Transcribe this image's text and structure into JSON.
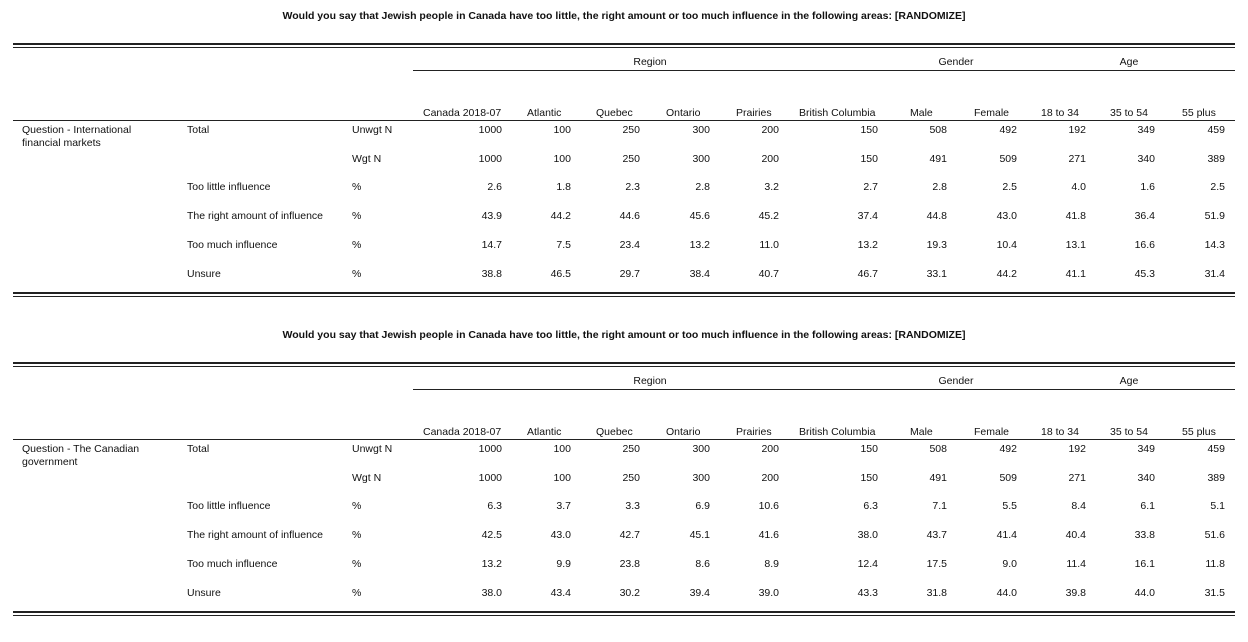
{
  "tables": [
    {
      "title": "Would you say that Jewish people in Canada have too little, the right amount or too much influence in the following areas: [RANDOMIZE]",
      "groups": [
        "Region",
        "Gender",
        "Age"
      ],
      "columns": [
        "Canada 2018-07",
        "Atlantic",
        "Quebec",
        "Ontario",
        "Prairies",
        "British Columbia",
        "Male",
        "Female",
        "18 to 34",
        "35 to 54",
        "55 plus"
      ],
      "question": "Question - International financial markets",
      "rows": [
        {
          "label": "Total",
          "stat": "Unwgt N",
          "values": [
            "1000",
            "100",
            "250",
            "300",
            "200",
            "150",
            "508",
            "492",
            "192",
            "349",
            "459"
          ]
        },
        {
          "stat": "Wgt N",
          "values": [
            "1000",
            "100",
            "250",
            "300",
            "200",
            "150",
            "491",
            "509",
            "271",
            "340",
            "389"
          ]
        },
        {
          "label": "Too little influence",
          "stat": "%",
          "values": [
            "2.6",
            "1.8",
            "2.3",
            "2.8",
            "3.2",
            "2.7",
            "2.8",
            "2.5",
            "4.0",
            "1.6",
            "2.5"
          ]
        },
        {
          "label": "The right amount of influence",
          "stat": "%",
          "values": [
            "43.9",
            "44.2",
            "44.6",
            "45.6",
            "45.2",
            "37.4",
            "44.8",
            "43.0",
            "41.8",
            "36.4",
            "51.9"
          ]
        },
        {
          "label": "Too much influence",
          "stat": "%",
          "values": [
            "14.7",
            "7.5",
            "23.4",
            "13.2",
            "11.0",
            "13.2",
            "19.3",
            "10.4",
            "13.1",
            "16.6",
            "14.3"
          ]
        },
        {
          "label": "Unsure",
          "stat": "%",
          "values": [
            "38.8",
            "46.5",
            "29.7",
            "38.4",
            "40.7",
            "46.7",
            "33.1",
            "44.2",
            "41.1",
            "45.3",
            "31.4"
          ]
        }
      ]
    },
    {
      "title": "Would you say that Jewish people in Canada have too little, the right amount or too much influence in the following areas: [RANDOMIZE]",
      "groups": [
        "Region",
        "Gender",
        "Age"
      ],
      "columns": [
        "Canada 2018-07",
        "Atlantic",
        "Quebec",
        "Ontario",
        "Prairies",
        "British Columbia",
        "Male",
        "Female",
        "18 to 34",
        "35 to 54",
        "55 plus"
      ],
      "question": "Question - The Canadian government",
      "rows": [
        {
          "label": "Total",
          "stat": "Unwgt N",
          "values": [
            "1000",
            "100",
            "250",
            "300",
            "200",
            "150",
            "508",
            "492",
            "192",
            "349",
            "459"
          ]
        },
        {
          "stat": "Wgt N",
          "values": [
            "1000",
            "100",
            "250",
            "300",
            "200",
            "150",
            "491",
            "509",
            "271",
            "340",
            "389"
          ]
        },
        {
          "label": "Too little influence",
          "stat": "%",
          "values": [
            "6.3",
            "3.7",
            "3.3",
            "6.9",
            "10.6",
            "6.3",
            "7.1",
            "5.5",
            "8.4",
            "6.1",
            "5.1"
          ]
        },
        {
          "label": "The right amount of influence",
          "stat": "%",
          "values": [
            "42.5",
            "43.0",
            "42.7",
            "45.1",
            "41.6",
            "38.0",
            "43.7",
            "41.4",
            "40.4",
            "33.8",
            "51.6"
          ]
        },
        {
          "label": "Too much influence",
          "stat": "%",
          "values": [
            "13.2",
            "9.9",
            "23.8",
            "8.6",
            "8.9",
            "12.4",
            "17.5",
            "9.0",
            "11.4",
            "16.1",
            "11.8"
          ]
        },
        {
          "label": "Unsure",
          "stat": "%",
          "values": [
            "38.0",
            "43.4",
            "30.2",
            "39.4",
            "39.0",
            "43.3",
            "31.8",
            "44.0",
            "39.8",
            "44.0",
            "31.5"
          ]
        }
      ]
    }
  ]
}
